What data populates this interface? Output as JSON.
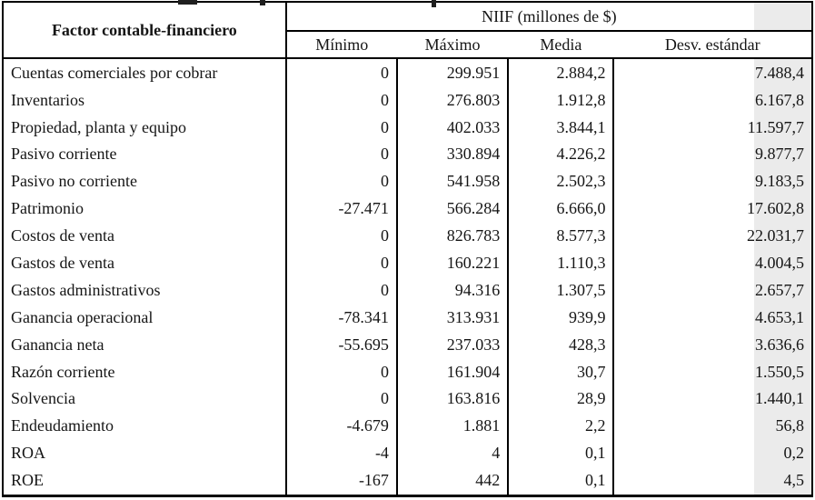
{
  "table": {
    "col1_header": "Factor contable-financiero",
    "group_header": "NIIF (millones de $)",
    "sub_headers": [
      "Mínimo",
      "Máximo",
      "Media",
      "Desv. estándar"
    ],
    "rows": [
      {
        "label": "Cuentas comerciales por cobrar",
        "min": "0",
        "max": "299.951",
        "media": "2.884,2",
        "desv": "7.488,4"
      },
      {
        "label": "Inventarios",
        "min": "0",
        "max": "276.803",
        "media": "1.912,8",
        "desv": "6.167,8"
      },
      {
        "label": "Propiedad, planta y equipo",
        "min": "0",
        "max": "402.033",
        "media": "3.844,1",
        "desv": "11.597,7"
      },
      {
        "label": "Pasivo corriente",
        "min": "0",
        "max": "330.894",
        "media": "4.226,2",
        "desv": "9.877,7"
      },
      {
        "label": "Pasivo no corriente",
        "min": "0",
        "max": "541.958",
        "media": "2.502,3",
        "desv": "9.183,5"
      },
      {
        "label": "Patrimonio",
        "min": "-27.471",
        "max": "566.284",
        "media": "6.666,0",
        "desv": "17.602,8"
      },
      {
        "label": "Costos de venta",
        "min": "0",
        "max": "826.783",
        "media": "8.577,3",
        "desv": "22.031,7"
      },
      {
        "label": "Gastos de venta",
        "min": "0",
        "max": "160.221",
        "media": "1.110,3",
        "desv": "4.004,5"
      },
      {
        "label": "Gastos administrativos",
        "min": "0",
        "max": "94.316",
        "media": "1.307,5",
        "desv": "2.657,7"
      },
      {
        "label": "Ganancia operacional",
        "min": "-78.341",
        "max": "313.931",
        "media": "939,9",
        "desv": "4.653,1"
      },
      {
        "label": "Ganancia neta",
        "min": "-55.695",
        "max": "237.033",
        "media": "428,3",
        "desv": "3.636,6"
      },
      {
        "label": "Razón corriente",
        "min": "0",
        "max": "161.904",
        "media": "30,7",
        "desv": "1.550,5"
      },
      {
        "label": "Solvencia",
        "min": "0",
        "max": "163.816",
        "media": "28,9",
        "desv": "1.440,1"
      },
      {
        "label": "Endeudamiento",
        "min": "-4.679",
        "max": "1.881",
        "media": "2,2",
        "desv": "56,8"
      },
      {
        "label": "ROA",
        "min": "-4",
        "max": "4",
        "media": "0,1",
        "desv": "0,2"
      },
      {
        "label": "ROE",
        "min": "-167",
        "max": "442",
        "media": "0,1",
        "desv": "4,5"
      }
    ]
  },
  "colors": {
    "highlight_band": "#ebebeb",
    "border": "#000000",
    "text": "#151515"
  }
}
